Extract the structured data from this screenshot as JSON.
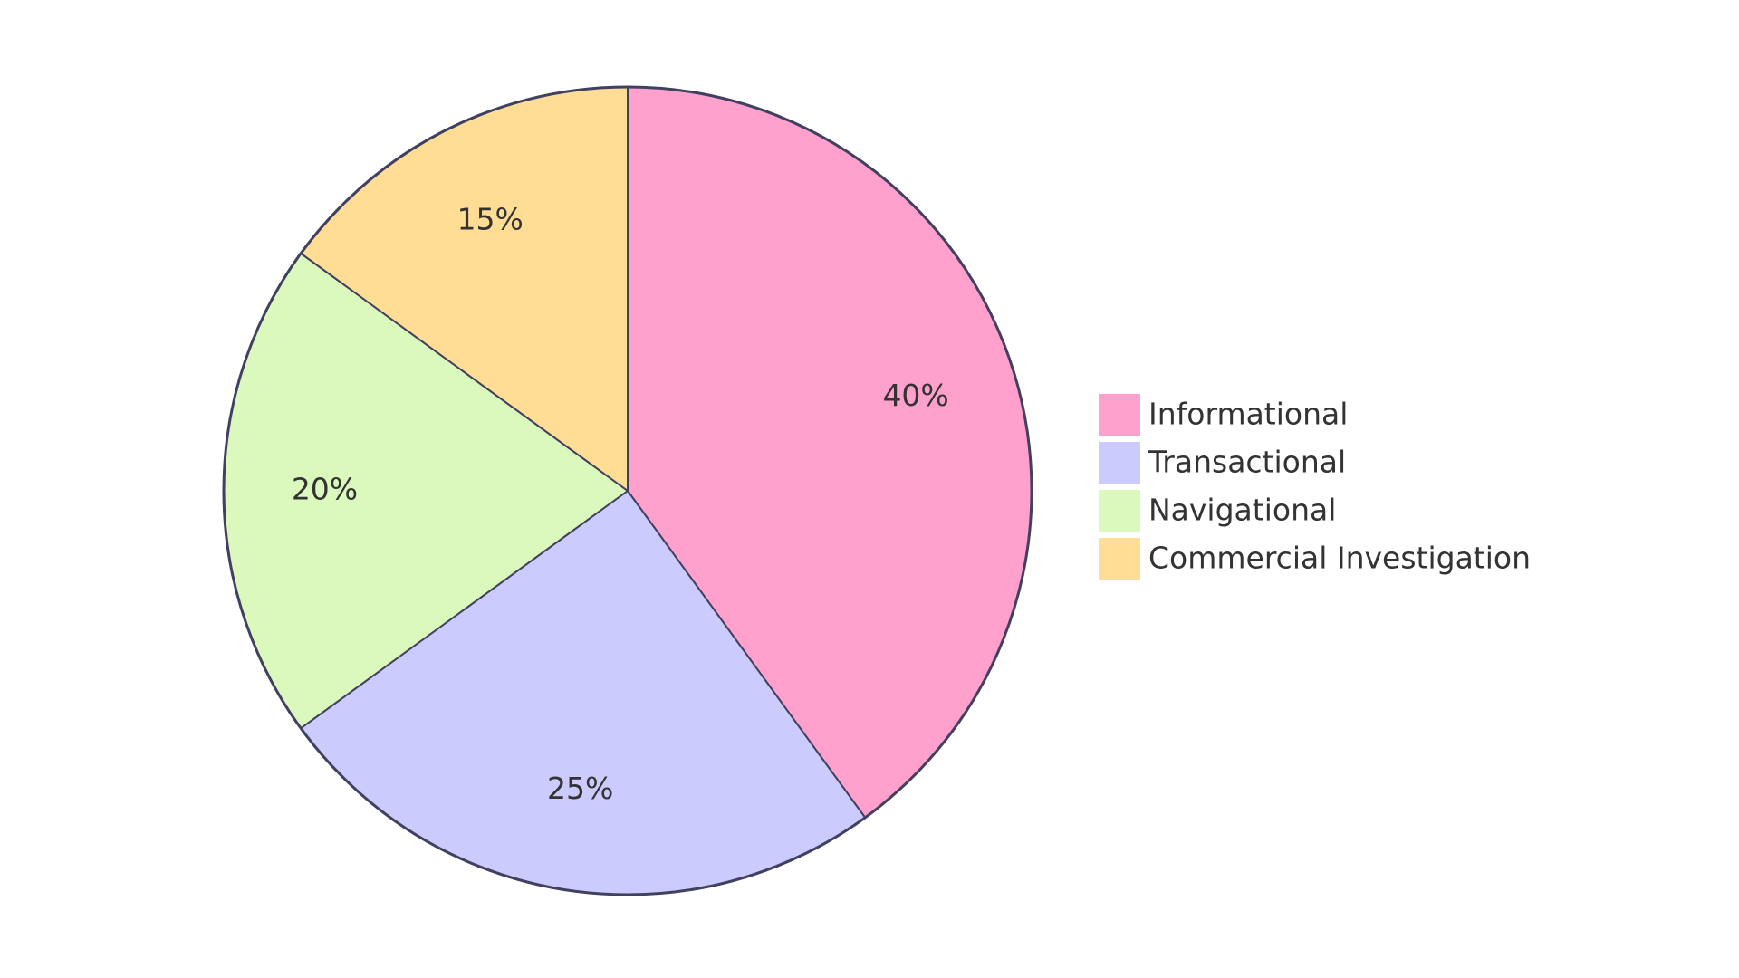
{
  "chart_data": {
    "type": "pie",
    "title": "",
    "start": "top",
    "direction": "clockwise",
    "legend_position": "right",
    "stroke_color": "#404060",
    "slices": [
      {
        "label": "Informational",
        "value": 40,
        "display": "40%",
        "color": "#FFA1CC"
      },
      {
        "label": "Transactional",
        "value": 25,
        "display": "25%",
        "color": "#CBCBFD"
      },
      {
        "label": "Navigational",
        "value": 20,
        "display": "20%",
        "color": "#DBF9BD"
      },
      {
        "label": "Commercial Investigation",
        "value": 15,
        "display": "15%",
        "color": "#FFDD94"
      }
    ]
  }
}
